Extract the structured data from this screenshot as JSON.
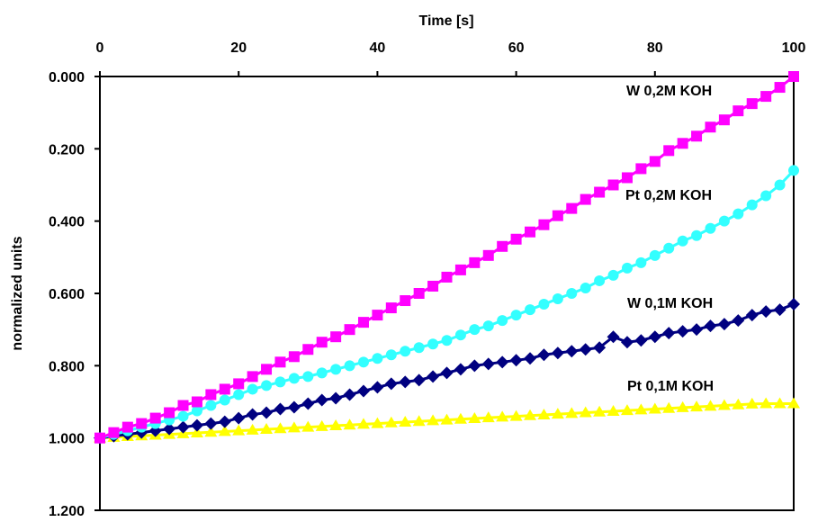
{
  "chart_data": {
    "type": "line",
    "xlabel": "Time [s]",
    "ylabel": "normalized units",
    "x_axis_position": "top",
    "y_axis_inverted": true,
    "xlim": [
      0,
      100
    ],
    "ylim": [
      0.0,
      1.2
    ],
    "x_ticks": [
      "0",
      "20",
      "40",
      "60",
      "80",
      "100"
    ],
    "y_ticks": [
      "0.000",
      "0.200",
      "0.400",
      "0.600",
      "0.800",
      "1.000",
      "1.200"
    ],
    "grid": false,
    "legend": "inline labels at right",
    "series": [
      {
        "name": "W 0,2M KOH",
        "color": "#ff00ff",
        "marker": "square",
        "x": [
          0,
          2,
          4,
          6,
          8,
          10,
          12,
          14,
          16,
          18,
          20,
          22,
          24,
          26,
          28,
          30,
          32,
          34,
          36,
          38,
          40,
          42,
          44,
          46,
          48,
          50,
          52,
          54,
          56,
          58,
          60,
          62,
          64,
          66,
          68,
          70,
          72,
          74,
          76,
          78,
          80,
          82,
          84,
          86,
          88,
          90,
          92,
          94,
          96,
          98,
          100
        ],
        "values": [
          1.0,
          0.985,
          0.97,
          0.96,
          0.945,
          0.93,
          0.91,
          0.9,
          0.88,
          0.865,
          0.85,
          0.83,
          0.81,
          0.79,
          0.775,
          0.755,
          0.735,
          0.72,
          0.7,
          0.68,
          0.66,
          0.64,
          0.62,
          0.6,
          0.58,
          0.555,
          0.535,
          0.515,
          0.495,
          0.47,
          0.45,
          0.43,
          0.41,
          0.385,
          0.365,
          0.34,
          0.32,
          0.3,
          0.28,
          0.255,
          0.235,
          0.205,
          0.185,
          0.165,
          0.14,
          0.12,
          0.095,
          0.075,
          0.055,
          0.03,
          0.0
        ]
      },
      {
        "name": "Pt 0,2M KOH",
        "color": "#33ffff",
        "marker": "circle",
        "x": [
          0,
          2,
          4,
          6,
          8,
          10,
          12,
          14,
          16,
          18,
          20,
          22,
          24,
          26,
          28,
          30,
          32,
          34,
          36,
          38,
          40,
          42,
          44,
          46,
          48,
          50,
          52,
          54,
          56,
          58,
          60,
          62,
          64,
          66,
          68,
          70,
          72,
          74,
          76,
          78,
          80,
          82,
          84,
          86,
          88,
          90,
          92,
          94,
          96,
          98,
          100
        ],
        "values": [
          1.0,
          0.99,
          0.98,
          0.97,
          0.96,
          0.95,
          0.94,
          0.925,
          0.91,
          0.895,
          0.88,
          0.865,
          0.855,
          0.845,
          0.835,
          0.83,
          0.82,
          0.81,
          0.8,
          0.79,
          0.78,
          0.77,
          0.76,
          0.75,
          0.74,
          0.73,
          0.715,
          0.7,
          0.69,
          0.675,
          0.66,
          0.645,
          0.63,
          0.615,
          0.6,
          0.585,
          0.565,
          0.55,
          0.53,
          0.515,
          0.495,
          0.475,
          0.455,
          0.44,
          0.42,
          0.4,
          0.38,
          0.355,
          0.33,
          0.3,
          0.26
        ]
      },
      {
        "name": "W 0,1M KOH",
        "color": "#000080",
        "marker": "diamond",
        "x": [
          0,
          2,
          4,
          6,
          8,
          10,
          12,
          14,
          16,
          18,
          20,
          22,
          24,
          26,
          28,
          30,
          32,
          34,
          36,
          38,
          40,
          42,
          44,
          46,
          48,
          50,
          52,
          54,
          56,
          58,
          60,
          62,
          64,
          66,
          68,
          70,
          72,
          74,
          76,
          78,
          80,
          82,
          84,
          86,
          88,
          90,
          92,
          94,
          96,
          98,
          100
        ],
        "values": [
          1.0,
          0.995,
          0.99,
          0.985,
          0.98,
          0.975,
          0.97,
          0.965,
          0.96,
          0.955,
          0.945,
          0.935,
          0.93,
          0.92,
          0.915,
          0.905,
          0.895,
          0.89,
          0.88,
          0.87,
          0.86,
          0.85,
          0.845,
          0.84,
          0.83,
          0.82,
          0.81,
          0.8,
          0.795,
          0.79,
          0.785,
          0.78,
          0.77,
          0.765,
          0.76,
          0.755,
          0.75,
          0.72,
          0.735,
          0.73,
          0.72,
          0.71,
          0.705,
          0.7,
          0.69,
          0.685,
          0.675,
          0.66,
          0.65,
          0.645,
          0.63
        ]
      },
      {
        "name": "Pt 0,1M KOH",
        "color": "#ffff00",
        "marker": "triangle",
        "x": [
          0,
          2,
          4,
          6,
          8,
          10,
          12,
          14,
          16,
          18,
          20,
          22,
          24,
          26,
          28,
          30,
          32,
          34,
          36,
          38,
          40,
          42,
          44,
          46,
          48,
          50,
          52,
          54,
          56,
          58,
          60,
          62,
          64,
          66,
          68,
          70,
          72,
          74,
          76,
          78,
          80,
          82,
          84,
          86,
          88,
          90,
          92,
          94,
          96,
          98,
          100
        ],
        "values": [
          1.0,
          0.998,
          0.996,
          0.994,
          0.992,
          0.99,
          0.988,
          0.986,
          0.984,
          0.982,
          0.98,
          0.978,
          0.976,
          0.974,
          0.972,
          0.97,
          0.968,
          0.966,
          0.964,
          0.962,
          0.96,
          0.958,
          0.956,
          0.954,
          0.952,
          0.95,
          0.948,
          0.946,
          0.944,
          0.942,
          0.94,
          0.938,
          0.936,
          0.934,
          0.932,
          0.93,
          0.928,
          0.926,
          0.924,
          0.922,
          0.92,
          0.918,
          0.916,
          0.914,
          0.912,
          0.91,
          0.908,
          0.906,
          0.905,
          0.905,
          0.905
        ]
      }
    ]
  }
}
